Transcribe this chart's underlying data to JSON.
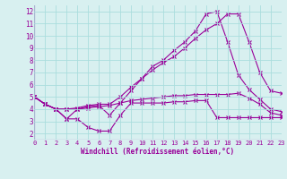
{
  "x": [
    0,
    1,
    2,
    3,
    4,
    5,
    6,
    7,
    8,
    9,
    10,
    11,
    12,
    13,
    14,
    15,
    16,
    17,
    18,
    19,
    20,
    21,
    22,
    23
  ],
  "line1": [
    5.0,
    4.4,
    4.0,
    3.2,
    3.2,
    2.5,
    2.2,
    2.2,
    3.5,
    4.5,
    4.5,
    4.5,
    4.5,
    4.6,
    4.6,
    4.7,
    4.7,
    3.3,
    3.3,
    3.3,
    3.3,
    3.3,
    3.3,
    3.3
  ],
  "line2": [
    5.0,
    4.4,
    4.0,
    4.0,
    4.0,
    4.1,
    4.2,
    4.3,
    4.5,
    4.7,
    4.8,
    4.9,
    5.0,
    5.1,
    5.1,
    5.2,
    5.2,
    5.2,
    5.2,
    5.3,
    4.9,
    4.4,
    3.7,
    3.5
  ],
  "line3": [
    5.0,
    4.4,
    4.0,
    4.0,
    4.1,
    4.3,
    4.4,
    4.4,
    5.0,
    5.8,
    6.5,
    7.2,
    7.8,
    8.3,
    9.0,
    9.8,
    10.5,
    11.0,
    11.8,
    11.8,
    9.5,
    7.0,
    5.5,
    5.3
  ],
  "line4": [
    5.0,
    4.4,
    4.0,
    3.2,
    4.0,
    4.2,
    4.3,
    3.5,
    4.5,
    5.5,
    6.5,
    7.5,
    8.0,
    8.8,
    9.5,
    10.4,
    11.8,
    12.0,
    9.5,
    6.8,
    5.6,
    4.8,
    4.0,
    3.8
  ],
  "bg_color": "#d8f0f0",
  "grid_color": "#aadddd",
  "line_color": "#990099",
  "xlabel": "Windchill (Refroidissement éolien,°C)",
  "ylim": [
    1.5,
    12.5
  ],
  "xlim": [
    0,
    23
  ],
  "yticks": [
    2,
    3,
    4,
    5,
    6,
    7,
    8,
    9,
    10,
    11,
    12
  ],
  "xticks": [
    0,
    1,
    2,
    3,
    4,
    5,
    6,
    7,
    8,
    9,
    10,
    11,
    12,
    13,
    14,
    15,
    16,
    17,
    18,
    19,
    20,
    21,
    22,
    23
  ],
  "tick_fontsize": 5.0,
  "xlabel_fontsize": 5.5
}
